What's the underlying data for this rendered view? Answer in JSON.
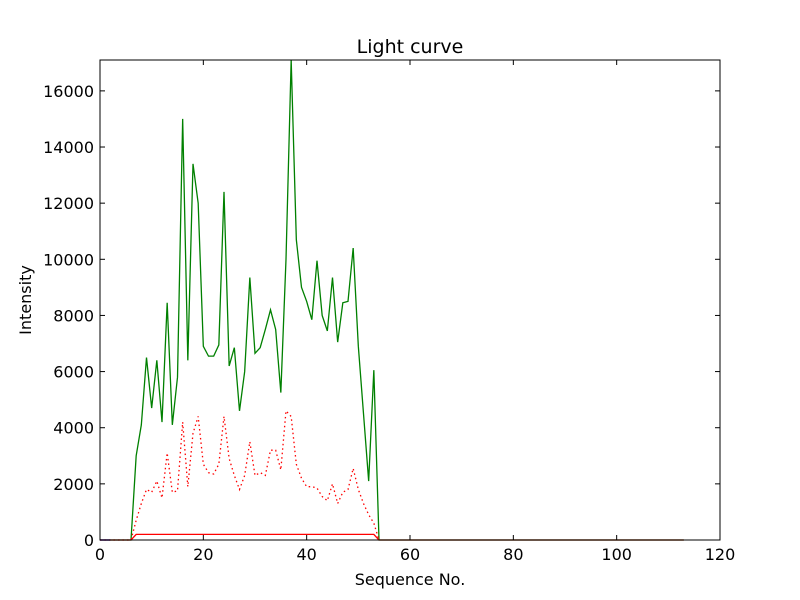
{
  "chart_data": {
    "type": "line",
    "title": "Light curve",
    "xlabel": "Sequence No.",
    "ylabel": "Intensity",
    "xlim": [
      0,
      120
    ],
    "ylim": [
      0,
      17100
    ],
    "xticks": [
      0,
      20,
      40,
      60,
      80,
      100,
      120
    ],
    "yticks": [
      0,
      2000,
      4000,
      6000,
      8000,
      10000,
      12000,
      14000,
      16000
    ],
    "grid": false,
    "legend": false,
    "series": [
      {
        "color": "#008000",
        "style": "solid",
        "x": [
          0,
          1,
          2,
          3,
          4,
          5,
          6,
          7,
          8,
          9,
          10,
          11,
          12,
          13,
          14,
          15,
          16,
          17,
          18,
          19,
          20,
          21,
          22,
          23,
          24,
          25,
          26,
          27,
          28,
          29,
          30,
          31,
          32,
          33,
          34,
          35,
          36,
          37,
          38,
          39,
          40,
          41,
          42,
          43,
          44,
          45,
          46,
          47,
          48,
          49,
          50,
          51,
          52,
          53,
          54,
          55,
          60,
          80,
          100,
          113
        ],
        "y": [
          0,
          0,
          0,
          0,
          0,
          0,
          0,
          3000,
          4100,
          6500,
          4700,
          6400,
          4200,
          8450,
          4100,
          5800,
          15000,
          6400,
          13400,
          12000,
          6900,
          6550,
          6550,
          6950,
          12400,
          6200,
          6850,
          4600,
          6000,
          9350,
          6650,
          6850,
          7500,
          8200,
          7500,
          5250,
          10000,
          17100,
          10700,
          9000,
          8500,
          7850,
          9950,
          8000,
          7450,
          9350,
          7050,
          8450,
          8500,
          10400,
          6900,
          4500,
          2100,
          6050,
          0,
          0,
          0,
          0,
          0,
          0
        ]
      },
      {
        "color": "#ff0000",
        "style": "dotted",
        "x": [
          0,
          5,
          6,
          7,
          8,
          9,
          10,
          11,
          12,
          13,
          14,
          15,
          16,
          17,
          18,
          19,
          20,
          21,
          22,
          23,
          24,
          25,
          26,
          27,
          28,
          29,
          30,
          31,
          32,
          33,
          34,
          35,
          36,
          37,
          38,
          39,
          40,
          41,
          42,
          43,
          44,
          45,
          46,
          47,
          48,
          49,
          50,
          51,
          52,
          53,
          54
        ],
        "y": [
          0,
          0,
          0,
          700,
          1300,
          1800,
          1700,
          2100,
          1500,
          3100,
          1700,
          1750,
          4200,
          1900,
          3800,
          4400,
          2700,
          2400,
          2350,
          2700,
          4400,
          2900,
          2300,
          1800,
          2300,
          3500,
          2300,
          2400,
          2300,
          3200,
          3200,
          2500,
          4600,
          4400,
          2700,
          2200,
          1900,
          1900,
          1850,
          1550,
          1400,
          2000,
          1300,
          1700,
          1800,
          2550,
          1800,
          1300,
          900,
          600,
          0
        ]
      },
      {
        "color": "#ff0000",
        "style": "solid",
        "x": [
          0,
          5,
          6,
          7,
          8,
          20,
          30,
          40,
          50,
          53,
          54,
          60,
          80,
          100,
          113
        ],
        "y": [
          0,
          0,
          0,
          200,
          200,
          200,
          200,
          200,
          200,
          200,
          0,
          0,
          0,
          0,
          0
        ]
      },
      {
        "color": "#0000ff",
        "style": "solid",
        "x": [
          0,
          1,
          2
        ],
        "y": [
          0,
          0,
          0
        ]
      }
    ]
  }
}
